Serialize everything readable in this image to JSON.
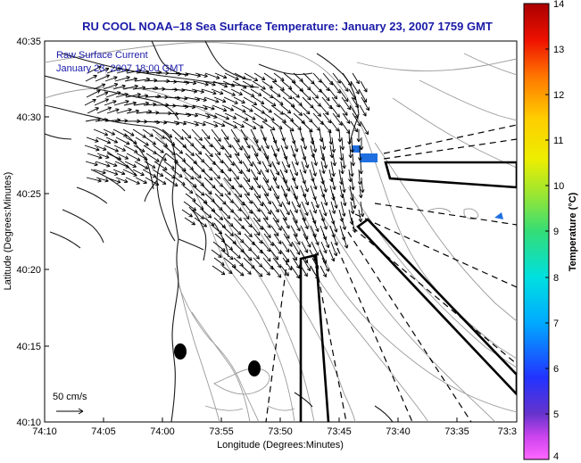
{
  "title": "RU COOL  NOAA–18  Sea Surface Temperature:  January 23, 2007 1759 GMT",
  "map": {
    "xlabel": "Longitude (Degrees:Minutes)",
    "ylabel": "Latitude (Degrees:Minutes)",
    "x_ticks": [
      "74:10",
      "74:05",
      "74:00",
      "73:55",
      "73:50",
      "73:45",
      "73:40",
      "73:35",
      "73:3"
    ],
    "y_ticks": [
      "40:35",
      "40:30",
      "40:25",
      "40:20",
      "40:15",
      "40:10"
    ],
    "overlay_label_line1": "Raw Surface Current",
    "overlay_label_line2": "January 23, 2007 18:00 GMT",
    "scale_label": "50 cm/s"
  },
  "colorbar": {
    "label": "Temperature (°C)",
    "ticks": [
      "14",
      "13",
      "12",
      "11",
      "10",
      "9",
      "8",
      "7",
      "6",
      "5",
      "4"
    ],
    "range": [
      4,
      14
    ]
  },
  "colors": {
    "title": "#1a1aa8",
    "annotation": "#1a1aa8",
    "sst_patch": "#1f6fe0"
  }
}
